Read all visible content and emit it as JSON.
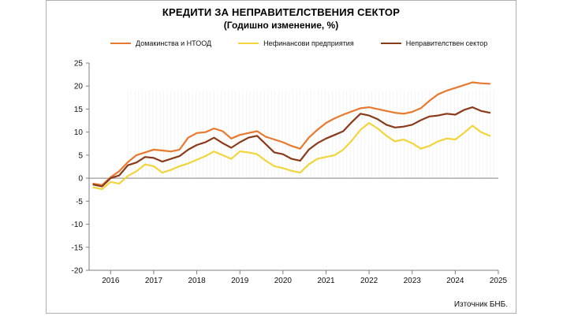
{
  "chart_data": {
    "type": "line",
    "title": "КРЕДИТИ ЗА НЕПРАВИТЕЛСТВЕНИЯ  СЕКТОР",
    "subtitle": "(Годишно  изменение, %)",
    "source": "Източник БНБ.",
    "ylim": [
      -20,
      25
    ],
    "yticks": [
      -20,
      -15,
      -10,
      -5,
      0,
      5,
      10,
      15,
      20,
      25
    ],
    "x_years": [
      "2016",
      "2017",
      "2018",
      "2019",
      "2020",
      "2021",
      "2022",
      "2023",
      "2024",
      "2025"
    ],
    "grid": false,
    "legend_position": "top",
    "series": [
      {
        "name": "Домакинства и НТООД",
        "color": "#E8792E",
        "x": [
          2015.6,
          2015.8,
          2016.0,
          2016.2,
          2016.4,
          2016.6,
          2016.8,
          2017.0,
          2017.2,
          2017.4,
          2017.6,
          2017.8,
          2018.0,
          2018.2,
          2018.4,
          2018.6,
          2018.8,
          2019.0,
          2019.2,
          2019.4,
          2019.6,
          2019.8,
          2020.0,
          2020.2,
          2020.4,
          2020.6,
          2020.8,
          2021.0,
          2021.2,
          2021.4,
          2021.6,
          2021.8,
          2022.0,
          2022.2,
          2022.4,
          2022.6,
          2022.8,
          2023.0,
          2023.2,
          2023.4,
          2023.6,
          2023.8,
          2024.0,
          2024.2,
          2024.4,
          2024.6,
          2024.8
        ],
        "values": [
          -1.2,
          -1.5,
          0.2,
          1.5,
          3.5,
          5.0,
          5.6,
          6.2,
          6.0,
          5.8,
          6.2,
          8.8,
          9.8,
          10.0,
          10.8,
          10.2,
          8.6,
          9.4,
          9.8,
          10.2,
          9.0,
          8.4,
          7.8,
          7.0,
          6.4,
          8.8,
          10.5,
          12.0,
          13.0,
          13.8,
          14.5,
          15.2,
          15.4,
          15.0,
          14.6,
          14.2,
          14.0,
          14.4,
          15.2,
          16.8,
          18.2,
          19.0,
          19.6,
          20.2,
          20.8,
          20.6,
          20.5
        ]
      },
      {
        "name": "Нефинансови предприятия",
        "color": "#F2D43C",
        "x": [
          2015.6,
          2015.8,
          2016.0,
          2016.2,
          2016.4,
          2016.6,
          2016.8,
          2017.0,
          2017.2,
          2017.4,
          2017.6,
          2017.8,
          2018.0,
          2018.2,
          2018.4,
          2018.6,
          2018.8,
          2019.0,
          2019.2,
          2019.4,
          2019.6,
          2019.8,
          2020.0,
          2020.2,
          2020.4,
          2020.6,
          2020.8,
          2021.0,
          2021.2,
          2021.4,
          2021.6,
          2021.8,
          2022.0,
          2022.2,
          2022.4,
          2022.6,
          2022.8,
          2023.0,
          2023.2,
          2023.4,
          2023.6,
          2023.8,
          2024.0,
          2024.2,
          2024.4,
          2024.6,
          2024.8
        ],
        "values": [
          -2.0,
          -2.4,
          -0.8,
          -1.2,
          0.5,
          1.5,
          3.0,
          2.6,
          1.2,
          1.8,
          2.6,
          3.2,
          4.0,
          4.8,
          5.8,
          5.0,
          4.2,
          5.8,
          5.6,
          5.2,
          3.8,
          2.6,
          2.2,
          1.6,
          1.2,
          3.0,
          4.2,
          4.6,
          5.0,
          6.2,
          8.2,
          10.5,
          12.0,
          10.8,
          9.2,
          8.0,
          8.4,
          7.6,
          6.4,
          7.0,
          8.0,
          8.6,
          8.4,
          9.8,
          11.4,
          10.0,
          9.2
        ]
      },
      {
        "name": "Неправителствен сектор",
        "color": "#8B3A1A",
        "x": [
          2015.6,
          2015.8,
          2016.0,
          2016.2,
          2016.4,
          2016.6,
          2016.8,
          2017.0,
          2017.2,
          2017.4,
          2017.6,
          2017.8,
          2018.0,
          2018.2,
          2018.4,
          2018.6,
          2018.8,
          2019.0,
          2019.2,
          2019.4,
          2019.6,
          2019.8,
          2020.0,
          2020.2,
          2020.4,
          2020.6,
          2020.8,
          2021.0,
          2021.2,
          2021.4,
          2021.6,
          2021.8,
          2022.0,
          2022.2,
          2022.4,
          2022.6,
          2022.8,
          2023.0,
          2023.2,
          2023.4,
          2023.6,
          2023.8,
          2024.0,
          2024.2,
          2024.4,
          2024.6,
          2024.8
        ],
        "values": [
          -1.4,
          -1.8,
          0.0,
          0.6,
          2.8,
          3.4,
          4.6,
          4.4,
          3.6,
          4.2,
          4.8,
          6.2,
          7.2,
          7.8,
          8.8,
          7.6,
          6.6,
          7.8,
          8.8,
          9.2,
          7.4,
          5.6,
          5.2,
          4.2,
          3.8,
          6.2,
          7.6,
          8.6,
          9.4,
          10.2,
          12.2,
          14.0,
          13.6,
          12.8,
          11.6,
          11.0,
          11.2,
          11.6,
          12.6,
          13.4,
          13.6,
          14.0,
          13.8,
          14.8,
          15.4,
          14.6,
          14.2
        ]
      }
    ]
  }
}
